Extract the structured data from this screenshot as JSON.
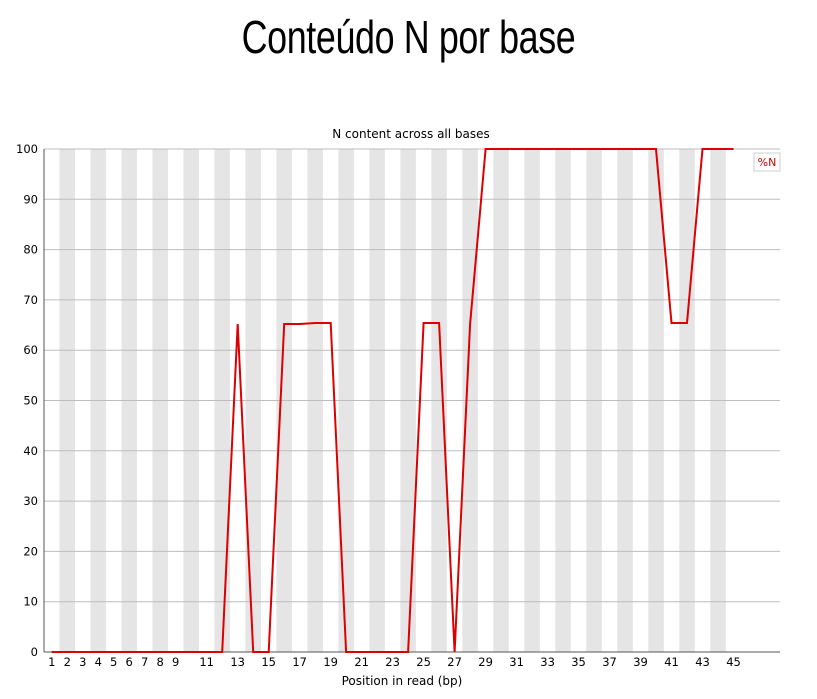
{
  "slide": {
    "title": "Conteúdo N por base"
  },
  "chart_data": {
    "type": "line",
    "title": "N content across all bases",
    "xlabel": "Position in read (bp)",
    "ylabel": "",
    "ylim": [
      0,
      100
    ],
    "yticks": [
      0,
      10,
      20,
      30,
      40,
      50,
      60,
      70,
      80,
      90,
      100
    ],
    "x": [
      1,
      2,
      3,
      4,
      5,
      6,
      7,
      8,
      9,
      10,
      11,
      12,
      13,
      14,
      15,
      16,
      17,
      18,
      19,
      20,
      21,
      22,
      23,
      24,
      25,
      26,
      27,
      28,
      29,
      30,
      31,
      32,
      33,
      34,
      35,
      36,
      37,
      38,
      39,
      40,
      41,
      42,
      43,
      44,
      45
    ],
    "xtick_labels": [
      "1",
      "2",
      "3",
      "4",
      "5",
      "6",
      "7",
      "8",
      "9",
      "11",
      "13",
      "15",
      "17",
      "19",
      "21",
      "23",
      "25",
      "27",
      "29",
      "31",
      "33",
      "35",
      "37",
      "39",
      "41",
      "43",
      "45"
    ],
    "alternating_bands": true,
    "legend": {
      "placement": "top-right",
      "entries": [
        "%N"
      ]
    },
    "series": [
      {
        "name": "%N",
        "color": "#dd0000",
        "values": [
          0,
          0,
          0,
          0,
          0,
          0,
          0,
          0,
          0,
          0,
          0,
          0,
          65.2,
          0,
          0,
          65.2,
          65.2,
          65.4,
          65.4,
          0,
          0,
          0,
          0,
          0,
          65.4,
          65.4,
          0,
          65.2,
          100,
          100,
          100,
          100,
          100,
          100,
          100,
          100,
          100,
          100,
          100,
          100,
          65.4,
          65.4,
          100,
          100,
          100
        ]
      }
    ]
  }
}
